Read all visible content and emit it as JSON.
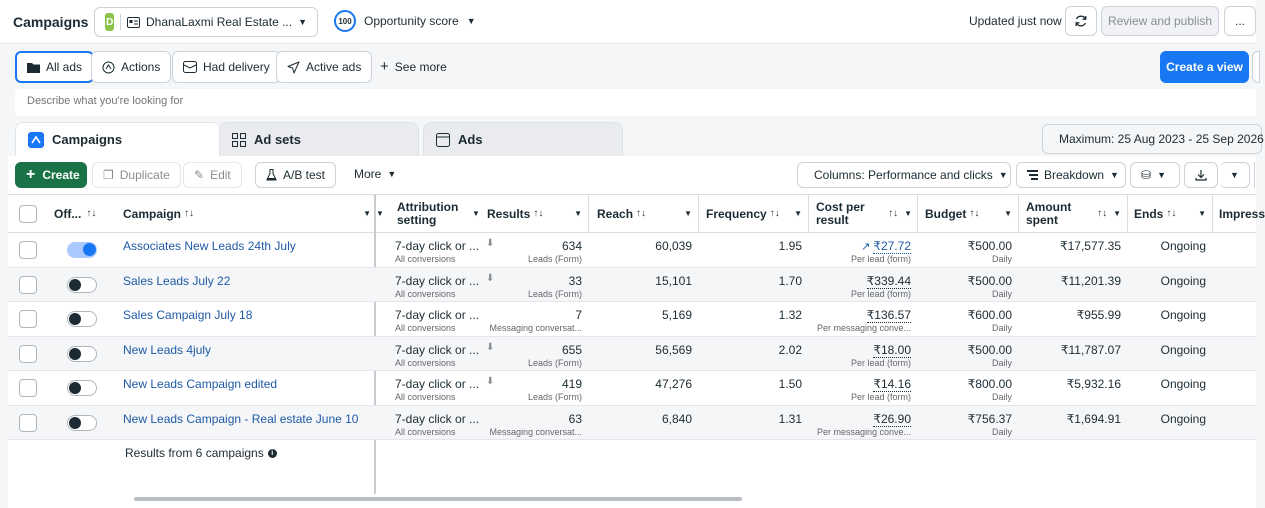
{
  "topbar": {
    "title": "Campaigns",
    "account_initial": "D",
    "account_name": "DhanaLaxmi Real Estate ...",
    "score_value": "100",
    "score_label": "Opportunity score",
    "updated": "Updated just now",
    "review_publish": "Review and publish",
    "more": "..."
  },
  "filters": {
    "all_ads": "All ads",
    "actions": "Actions",
    "had_delivery": "Had delivery",
    "active_ads": "Active ads",
    "see_more": "See more",
    "create_view": "Create a view"
  },
  "search": {
    "placeholder": "Describe what you're looking for"
  },
  "tabs": {
    "campaigns": "Campaigns",
    "ad_sets": "Ad sets",
    "ads": "Ads",
    "date_range": "Maximum: 25 Aug 2023 - 25 Sep 2026"
  },
  "toolbar": {
    "create": "Create",
    "duplicate": "Duplicate",
    "edit": "Edit",
    "ab_test": "A/B test",
    "more": "More",
    "columns": "Columns: Performance and clicks",
    "breakdown": "Breakdown"
  },
  "headers": {
    "off": "Off...",
    "campaign": "Campaign",
    "attribution1": "Attribution",
    "attribution2": "setting",
    "results": "Results",
    "reach": "Reach",
    "frequency": "Frequency",
    "cost1": "Cost per",
    "cost2": "result",
    "budget": "Budget",
    "amount1": "Amount",
    "amount2": "spent",
    "ends": "Ends",
    "impress": "Impress"
  },
  "rows": [
    {
      "on": true,
      "name": "Associates New Leads 24th July",
      "attr": "7-day click or ...",
      "attr_sub": "All conversions",
      "results": "634",
      "results_sub": "Leads (Form)",
      "reach": "60,039",
      "frequency": "1.95",
      "cost": "₹27.72",
      "cost_sub": "Per lead (form)",
      "budget": "₹500.00",
      "budget_sub": "Daily",
      "spent": "₹17,577.35",
      "ends": "Ongoing",
      "dl": true,
      "trend": true
    },
    {
      "on": false,
      "name": "Sales Leads July 22",
      "attr": "7-day click or ...",
      "attr_sub": "All conversions",
      "results": "33",
      "results_sub": "Leads (Form)",
      "reach": "15,101",
      "frequency": "1.70",
      "cost": "₹339.44",
      "cost_sub": "Per lead (form)",
      "budget": "₹500.00",
      "budget_sub": "Daily",
      "spent": "₹11,201.39",
      "ends": "Ongoing",
      "dl": true,
      "trend": false
    },
    {
      "on": false,
      "name": "Sales Campaign July 18",
      "attr": "7-day click or ...",
      "attr_sub": "All conversions",
      "results": "7",
      "results_sub": "Messaging conversat...",
      "reach": "5,169",
      "frequency": "1.32",
      "cost": "₹136.57",
      "cost_sub": "Per messaging conve...",
      "budget": "₹600.00",
      "budget_sub": "Daily",
      "spent": "₹955.99",
      "ends": "Ongoing",
      "dl": false,
      "trend": false
    },
    {
      "on": false,
      "name": "New Leads 4july",
      "attr": "7-day click or ...",
      "attr_sub": "All conversions",
      "results": "655",
      "results_sub": "Leads (Form)",
      "reach": "56,569",
      "frequency": "2.02",
      "cost": "₹18.00",
      "cost_sub": "Per lead (form)",
      "budget": "₹500.00",
      "budget_sub": "Daily",
      "spent": "₹11,787.07",
      "ends": "Ongoing",
      "dl": true,
      "trend": false
    },
    {
      "on": false,
      "name": "New Leads Campaign edited",
      "attr": "7-day click or ...",
      "attr_sub": "All conversions",
      "results": "419",
      "results_sub": "Leads (Form)",
      "reach": "47,276",
      "frequency": "1.50",
      "cost": "₹14.16",
      "cost_sub": "Per lead (form)",
      "budget": "₹800.00",
      "budget_sub": "Daily",
      "spent": "₹5,932.16",
      "ends": "Ongoing",
      "dl": true,
      "trend": false
    },
    {
      "on": false,
      "name": "New Leads Campaign - Real estate June 10",
      "attr": "7-day click or ...",
      "attr_sub": "All conversions",
      "results": "63",
      "results_sub": "Messaging conversat...",
      "reach": "6,840",
      "frequency": "1.31",
      "cost": "₹26.90",
      "cost_sub": "Per messaging conve...",
      "budget": "₹756.37",
      "budget_sub": "Daily",
      "spent": "₹1,694.91",
      "ends": "Ongoing",
      "dl": false,
      "trend": false
    }
  ],
  "footer": {
    "summary": "Results from 6 campaigns"
  },
  "colors": {
    "accent": "#1877f2",
    "create_green": "#1a7346",
    "link": "#1f5aa6"
  }
}
